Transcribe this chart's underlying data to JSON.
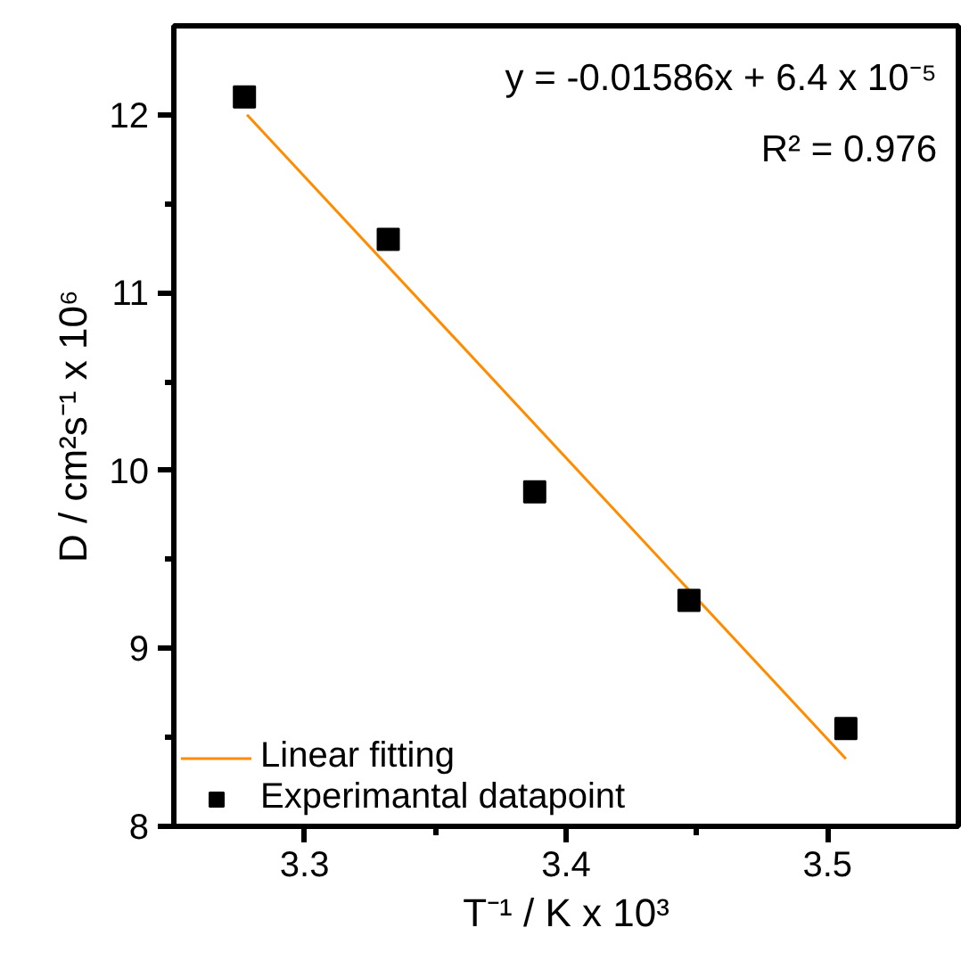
{
  "chart_data": {
    "type": "scatter",
    "xlabel": "T⁻¹ / K x 10³",
    "ylabel": "D / cm²s⁻¹ x 10⁶",
    "xlim": [
      3.25,
      3.55
    ],
    "ylim": [
      8,
      12.5
    ],
    "xticks": [
      3.3,
      {
        "value": 3.35,
        "label": null
      },
      3.4,
      {
        "value": 3.45,
        "label": null
      },
      3.5
    ],
    "yticks": [
      8,
      {
        "value": 8.5,
        "label": null
      },
      9,
      {
        "value": 9.5,
        "label": null
      },
      10,
      {
        "value": 10.5,
        "label": null
      },
      11,
      {
        "value": 11.5,
        "label": null
      },
      12
    ],
    "grid": false,
    "legend": "bottom left",
    "series": [
      {
        "name": "Linear fitting",
        "type": "line",
        "color": "#ff8c00",
        "x": [
          3.278,
          3.507
        ],
        "values": [
          12.0,
          8.38
        ],
        "line_style": "solid"
      },
      {
        "name": "Experimantal datapoint",
        "color": "#000000",
        "x": [
          3.277,
          3.332,
          3.388,
          3.447,
          3.507
        ],
        "values": [
          12.1,
          11.3,
          9.88,
          9.27,
          8.55
        ],
        "marker": "square"
      }
    ],
    "annotations": [
      "y = -0.01586x + 6.4 x 10⁻⁵",
      "R² = 0.976"
    ]
  }
}
